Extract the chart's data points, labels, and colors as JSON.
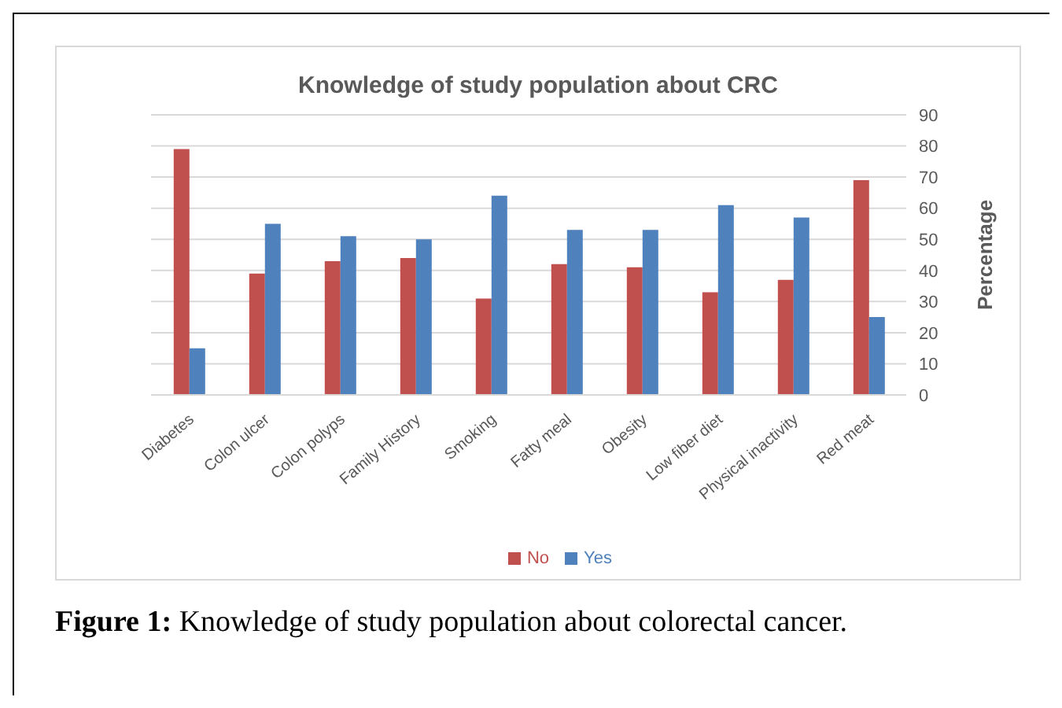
{
  "chart_data": {
    "type": "bar",
    "title": "Knowledge of study population about CRC",
    "y2label": "Percentage",
    "categories": [
      "Diabetes",
      "Colon ulcer",
      "Colon polyps",
      "Family History",
      "Smoking",
      "Fatty meal",
      "Obesity",
      "Low fiber diet",
      "Physical inactivity",
      "Red meat"
    ],
    "series": [
      {
        "name": "No",
        "color": "#c0504d",
        "values": [
          79,
          39,
          43,
          44,
          31,
          42,
          41,
          33,
          37,
          69
        ]
      },
      {
        "name": "Yes",
        "color": "#4f81bd",
        "values": [
          15,
          55,
          51,
          50,
          64,
          53,
          53,
          61,
          57,
          25
        ]
      }
    ],
    "ylim": [
      0,
      90
    ],
    "yticks": [
      0,
      10,
      20,
      30,
      40,
      50,
      60,
      70,
      80,
      90
    ],
    "grid": "y",
    "legend": "bottom",
    "annotations": [
      "Figure 1: Knowledge of study population about colorectal cancer."
    ]
  }
}
